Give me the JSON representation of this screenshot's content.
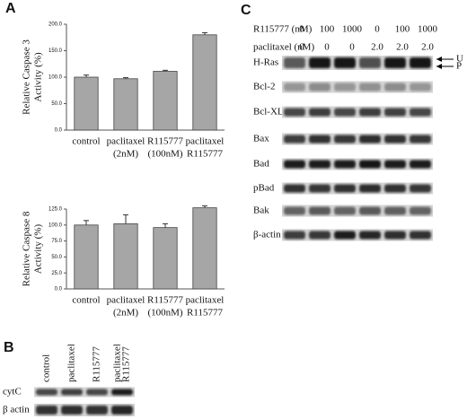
{
  "panel_labels": [
    "A",
    "B",
    "C"
  ],
  "chart_data": [
    {
      "type": "bar",
      "ylabel": [
        "Relative Caspase 3",
        "Activity (%)"
      ],
      "categories": [
        [
          "control"
        ],
        [
          "paclitaxel",
          "(2nM)"
        ],
        [
          "R115777",
          "(100nM)"
        ],
        [
          "paclitaxel",
          "R115777"
        ]
      ],
      "values": [
        100,
        97,
        111,
        180
      ],
      "errors": [
        4,
        2,
        2,
        4
      ],
      "color": "#a6a6a6",
      "ylim": [
        0,
        200
      ],
      "yticks": [
        {
          "value": 0,
          "label": "0.0"
        },
        {
          "value": 50,
          "label": "50.0"
        },
        {
          "value": 100,
          "label": "100.0"
        },
        {
          "value": 150,
          "label": "150.0"
        },
        {
          "value": 200,
          "label": "200.0"
        }
      ]
    },
    {
      "type": "bar",
      "ylabel": [
        "Relative Caspase 8",
        "Activity (%)"
      ],
      "categories": [
        [
          "control"
        ],
        [
          "paclitaxel",
          "(2nM)"
        ],
        [
          "R115777",
          "(100nM)"
        ],
        [
          "paclitaxel",
          "R115777"
        ]
      ],
      "values": [
        100,
        102,
        96,
        127
      ],
      "errors": [
        7,
        14,
        6,
        3
      ],
      "color": "#a6a6a6",
      "ylim": [
        0,
        125
      ],
      "yticks": [
        {
          "value": 0,
          "label": "0.0"
        },
        {
          "value": 25,
          "label": "25.0"
        },
        {
          "value": 50,
          "label": "50.0"
        },
        {
          "value": 75,
          "label": "75.0"
        },
        {
          "value": 100,
          "label": "100.0"
        },
        {
          "value": 125,
          "label": "125.0"
        }
      ]
    }
  ],
  "blot_b": {
    "lanes": [
      [
        "control"
      ],
      [
        "paclitaxel"
      ],
      [
        "R115777"
      ],
      [
        "paclitaxel",
        "R115777"
      ]
    ],
    "rows": [
      "cytC",
      "β actin"
    ]
  },
  "blot_c": {
    "conditions": [
      {
        "label": "R115777 (nM)",
        "values": [
          "0",
          "100",
          "1000",
          "0",
          "100",
          "1000"
        ]
      },
      {
        "label": "paclitaxel  (nM)",
        "values": [
          "0",
          "0",
          "0",
          "2.0",
          "2.0",
          "2.0"
        ]
      }
    ],
    "rows": [
      "H-Ras",
      "Bcl-2",
      "Bcl-XL",
      "Bax",
      "Bad",
      "pBad",
      "Bak",
      "β-actin"
    ],
    "arrows": [
      "U",
      "P"
    ]
  }
}
